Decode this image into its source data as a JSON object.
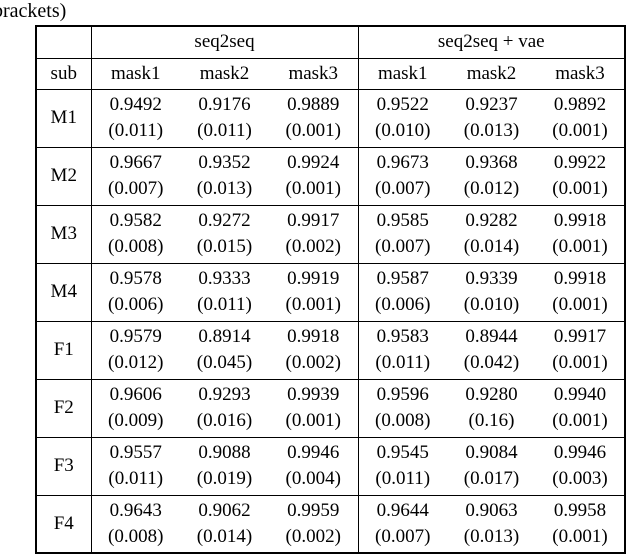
{
  "caption_fragment": "brackets)",
  "colors": {
    "text": "#000000",
    "border": "#000000",
    "background": "#ffffff"
  },
  "table": {
    "groups": [
      {
        "label": "seq2seq"
      },
      {
        "label": "seq2seq + vae"
      }
    ],
    "sub_header": [
      "sub",
      "mask1",
      "mask2",
      "mask3",
      "mask1",
      "mask2",
      "mask3"
    ],
    "rows": [
      {
        "sub": "M1",
        "cells": [
          {
            "value": "0.9492",
            "std": "(0.011)"
          },
          {
            "value": "0.9176",
            "std": "(0.011)"
          },
          {
            "value": "0.9889",
            "std": "(0.001)"
          },
          {
            "value": "0.9522",
            "std": "(0.010)"
          },
          {
            "value": "0.9237",
            "std": "(0.013)"
          },
          {
            "value": "0.9892",
            "std": "(0.001)"
          }
        ]
      },
      {
        "sub": "M2",
        "cells": [
          {
            "value": "0.9667",
            "std": "(0.007)"
          },
          {
            "value": "0.9352",
            "std": "(0.013)"
          },
          {
            "value": "0.9924",
            "std": "(0.001)"
          },
          {
            "value": "0.9673",
            "std": "(0.007)"
          },
          {
            "value": "0.9368",
            "std": "(0.012)"
          },
          {
            "value": "0.9922",
            "std": "(0.001)"
          }
        ]
      },
      {
        "sub": "M3",
        "cells": [
          {
            "value": "0.9582",
            "std": "(0.008)"
          },
          {
            "value": "0.9272",
            "std": "(0.015)"
          },
          {
            "value": "0.9917",
            "std": "(0.002)"
          },
          {
            "value": "0.9585",
            "std": "(0.007)"
          },
          {
            "value": "0.9282",
            "std": "(0.014)"
          },
          {
            "value": "0.9918",
            "std": "(0.001)"
          }
        ]
      },
      {
        "sub": "M4",
        "cells": [
          {
            "value": "0.9578",
            "std": "(0.006)"
          },
          {
            "value": "0.9333",
            "std": "(0.011)"
          },
          {
            "value": "0.9919",
            "std": "(0.001)"
          },
          {
            "value": "0.9587",
            "std": "(0.006)"
          },
          {
            "value": "0.9339",
            "std": "(0.010)"
          },
          {
            "value": "0.9918",
            "std": "(0.001)"
          }
        ]
      },
      {
        "sub": "F1",
        "cells": [
          {
            "value": "0.9579",
            "std": "(0.012)"
          },
          {
            "value": "0.8914",
            "std": "(0.045)"
          },
          {
            "value": "0.9918",
            "std": "(0.002)"
          },
          {
            "value": "0.9583",
            "std": "(0.011)"
          },
          {
            "value": "0.8944",
            "std": "(0.042)"
          },
          {
            "value": "0.9917",
            "std": "(0.001)"
          }
        ]
      },
      {
        "sub": "F2",
        "cells": [
          {
            "value": "0.9606",
            "std": "(0.009)"
          },
          {
            "value": "0.9293",
            "std": "(0.016)"
          },
          {
            "value": "0.9939",
            "std": "(0.001)"
          },
          {
            "value": "0.9596",
            "std": "(0.008)"
          },
          {
            "value": "0.9280",
            "std": "(0.16)"
          },
          {
            "value": "0.9940",
            "std": "(0.001)"
          }
        ]
      },
      {
        "sub": "F3",
        "cells": [
          {
            "value": "0.9557",
            "std": "(0.011)"
          },
          {
            "value": "0.9088",
            "std": "(0.019)"
          },
          {
            "value": "0.9946",
            "std": "(0.004)"
          },
          {
            "value": "0.9545",
            "std": "(0.011)"
          },
          {
            "value": "0.9084",
            "std": "(0.017)"
          },
          {
            "value": "0.9946",
            "std": "(0.003)"
          }
        ]
      },
      {
        "sub": "F4",
        "cells": [
          {
            "value": "0.9643",
            "std": "(0.008)"
          },
          {
            "value": "0.9062",
            "std": "(0.014)"
          },
          {
            "value": "0.9959",
            "std": "(0.002)"
          },
          {
            "value": "0.9644",
            "std": "(0.007)"
          },
          {
            "value": "0.9063",
            "std": "(0.013)"
          },
          {
            "value": "0.9958",
            "std": "(0.001)"
          }
        ]
      }
    ]
  }
}
